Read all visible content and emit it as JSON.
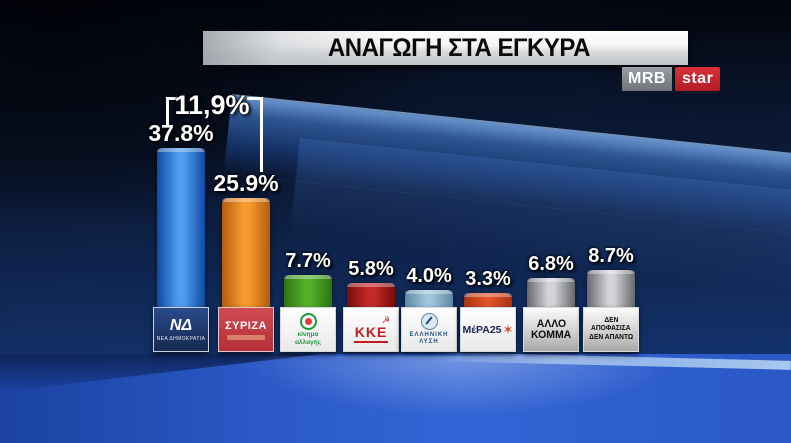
{
  "header": {
    "title": "ΑΝΑΓΩΓΗ ΣΤΑ ΕΓΚΥΡΑ"
  },
  "branding": {
    "mrb_label": "MRB",
    "star_label": "star",
    "mrb_bg": "#6e7379",
    "star_bg": "#b31c24"
  },
  "annotation": {
    "difference_label": "11,9%"
  },
  "chart_data": {
    "type": "bar",
    "title": "ΑΝΑΓΩΓΗ ΣΤΑ ΕΓΚΥΡΑ",
    "categories": [
      "ΝΕΑ ΔΗΜΟΚΡΑΤΙΑ",
      "ΣΥΡΙΖΑ",
      "ΚΙΝΗΜΑ ΑΛΛΑΓΗΣ",
      "ΚΚΕ",
      "ΕΛΛΗΝΙΚΗ ΛΥΣΗ",
      "ΜέΡΑ25",
      "ΑΛΛΟ ΚΟΜΜΑ",
      "ΔΕΝ ΑΠΟΦΑΣΙΣΑ ΔΕΝ ΑΠΑΝΤΩ"
    ],
    "values": [
      37.8,
      25.9,
      7.7,
      5.8,
      4.0,
      3.3,
      6.8,
      8.7
    ],
    "value_labels": [
      "37.8%",
      "25.9%",
      "7.7%",
      "5.8%",
      "4.0%",
      "3.3%",
      "6.8%",
      "8.7%"
    ],
    "annotation_text": "11,9%",
    "bar_colors_center": [
      "#4f9cf2",
      "#f79b2e",
      "#56b02a",
      "#c42a2a",
      "#9fc6da",
      "#e2542a",
      "#d2d4d8",
      "#d2d4d8"
    ],
    "bar_colors_edge": [
      "#0f4ba0",
      "#b55d0e",
      "#2c7412",
      "#7c0b0b",
      "#5d89a5",
      "#a93311",
      "#66686d",
      "#66686d"
    ],
    "ylim": [
      0,
      40
    ],
    "grid": false,
    "legend": false
  },
  "parties": [
    {
      "name": "ΝΕΑ ΔΗΜΟΚΡΑΤΙΑ",
      "pct": "37.8%",
      "tile": {
        "main": "ΝΔ",
        "sub": "ΝΕΑ ΔΗΜΟΚΡΑΤΙΑ"
      }
    },
    {
      "name": "ΣΥΡΙΖΑ",
      "pct": "25.9%",
      "tile": {
        "main": "ΣΥΡΙΖΑ"
      }
    },
    {
      "name": "ΚΙΝΗΜΑ ΑΛΛΑΓΗΣ",
      "pct": "7.7%",
      "tile": {
        "line1": "κίνημα",
        "line2": "αλλαγής"
      }
    },
    {
      "name": "ΚΚΕ",
      "pct": "5.8%",
      "tile": {
        "main": "ΚΚΕ",
        "icon": "☭"
      }
    },
    {
      "name": "ΕΛΛΗΝΙΚΗ ΛΥΣΗ",
      "pct": "4.0%",
      "tile": {
        "line1": "ΕΛΛΗΝΙΚΗ",
        "line2": "ΛΥΣΗ"
      }
    },
    {
      "name": "ΜέΡΑ25",
      "pct": "3.3%",
      "tile": {
        "main": "ΜέΡΑ25",
        "icon": "✶"
      }
    },
    {
      "name": "ΑΛΛΟ ΚΟΜΜΑ",
      "pct": "6.8%",
      "tile": {
        "line1": "ΑΛΛΟ",
        "line2": "ΚΟΜΜΑ"
      }
    },
    {
      "name": "ΔΕΝ ΑΠΟΦΑΣΙΣΑ ΔΕΝ ΑΠΑΝΤΩ",
      "pct": "8.7%",
      "tile": {
        "line1": "ΔΕΝ",
        "line2": "ΑΠΟΦΑΣΙΣΑ",
        "line3": "ΔΕΝ ΑΠΑΝΤΩ"
      }
    }
  ],
  "colors": {
    "background_navy": "#0c1c3c",
    "floor_blue": "#2a58c6",
    "beam_blue": "#34609f",
    "label_text": "#ffffff",
    "title_text": "#0b0b0b"
  }
}
